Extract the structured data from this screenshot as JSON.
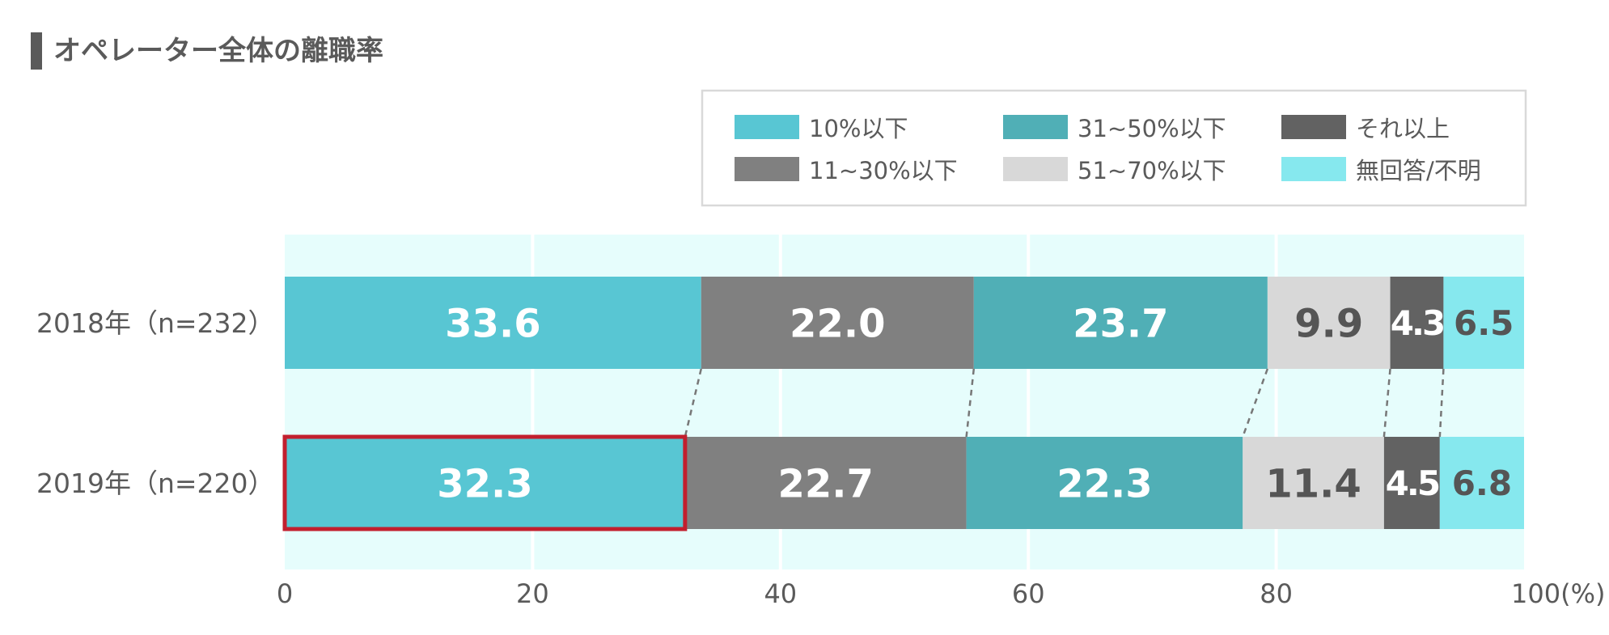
{
  "title": "オペレーター全体の離職率",
  "chart_data": {
    "type": "bar",
    "orientation": "horizontal",
    "stacked": true,
    "title": "オペレーター全体の離職率",
    "xlabel": "",
    "ylabel": "",
    "xlim": [
      0,
      100
    ],
    "x_ticks": [
      "0",
      "20",
      "40",
      "60",
      "80",
      "100(%)"
    ],
    "x_tick_values": [
      0,
      20,
      40,
      60,
      80,
      100
    ],
    "grid": true,
    "legend_position": "top-right",
    "categories": [
      "2018年（n=232）",
      "2019年（n=220）"
    ],
    "series": [
      {
        "name": "10%以下",
        "color": "#58c6d3",
        "label_color": "#ffffff",
        "values": [
          33.6,
          32.3
        ]
      },
      {
        "name": "11~30%以下",
        "color": "#808080",
        "label_color": "#ffffff",
        "values": [
          22.0,
          22.7
        ]
      },
      {
        "name": "31~50%以下",
        "color": "#50afb6",
        "label_color": "#ffffff",
        "values": [
          23.7,
          22.3
        ]
      },
      {
        "name": "51~70%以下",
        "color": "#d8d8d8",
        "label_color": "#555555",
        "values": [
          9.9,
          11.4
        ]
      },
      {
        "name": "それ以上",
        "color": "#626262",
        "label_color": "#ffffff",
        "values": [
          4.3,
          4.5
        ]
      },
      {
        "name": "無回答/不明",
        "color": "#86e8ee",
        "label_color": "#555555",
        "values": [
          6.5,
          6.8
        ]
      }
    ],
    "data_labels": [
      [
        "33.6",
        "22.0",
        "23.7",
        "9.9",
        "4.3",
        "6.5"
      ],
      [
        "32.3",
        "22.7",
        "22.3",
        "11.4",
        "4.5",
        "6.8"
      ]
    ],
    "legend_order": [
      "10%以下",
      "31~50%以下",
      "それ以上",
      "11~30%以下",
      "51~70%以下",
      "無回答/不明"
    ],
    "highlight": {
      "category_index": 1,
      "series_index": 0,
      "color": "#c21f2e"
    },
    "colors": {
      "plot_background": "#e6fdfc",
      "grid": "#ffffff",
      "text": "#5a5a5a",
      "connector": "#777777",
      "legend_border": "#d9d9d9"
    }
  }
}
